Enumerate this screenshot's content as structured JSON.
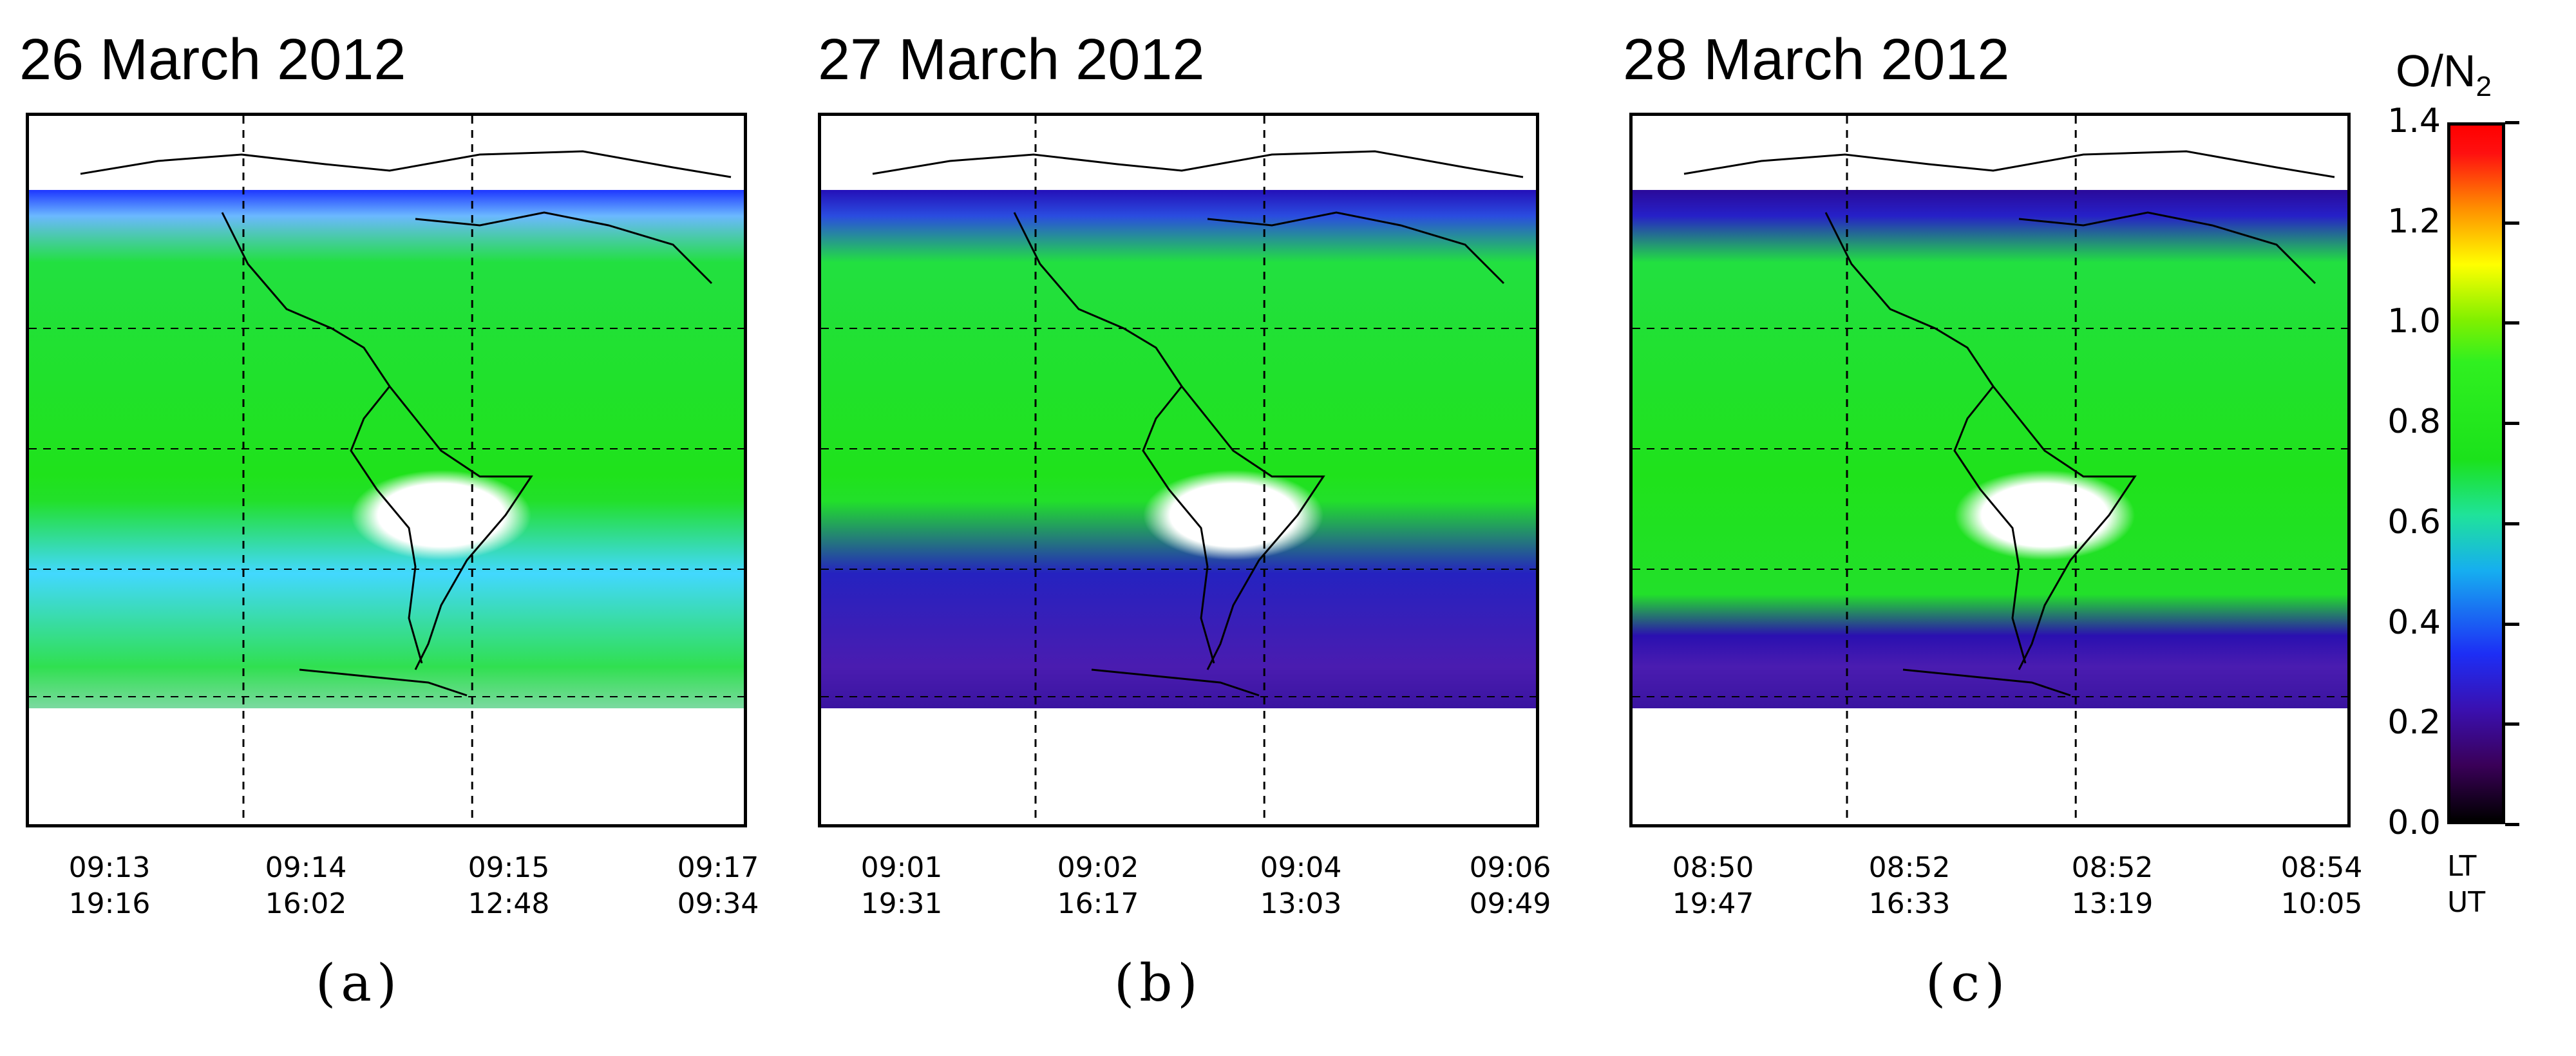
{
  "chart_data": [
    {
      "type": "heatmap",
      "title": "26 March 2012",
      "panel_label": "(a)",
      "variable": "O/N2",
      "x_ticks": [
        {
          "lt": "09:13",
          "ut": "19:16"
        },
        {
          "lt": "09:14",
          "ut": "16:02"
        },
        {
          "lt": "09:15",
          "ut": "12:48"
        },
        {
          "lt": "09:17",
          "ut": "09:34"
        }
      ]
    },
    {
      "type": "heatmap",
      "title": "27 March 2012",
      "panel_label": "(b)",
      "variable": "O/N2",
      "x_ticks": [
        {
          "lt": "09:01",
          "ut": "19:31"
        },
        {
          "lt": "09:02",
          "ut": "16:17"
        },
        {
          "lt": "09:04",
          "ut": "13:03"
        },
        {
          "lt": "09:06",
          "ut": "09:49"
        }
      ]
    },
    {
      "type": "heatmap",
      "title": "28 March 2012",
      "panel_label": "(c)",
      "variable": "O/N2",
      "x_ticks": [
        {
          "lt": "08:50",
          "ut": "19:47"
        },
        {
          "lt": "08:52",
          "ut": "16:33"
        },
        {
          "lt": "08:52",
          "ut": "13:19"
        },
        {
          "lt": "08:54",
          "ut": "10:05"
        }
      ]
    }
  ],
  "colorbar": {
    "title": "O/N",
    "title_sub": "2",
    "ticks": [
      "0.0",
      "0.2",
      "0.4",
      "0.6",
      "0.8",
      "1.0",
      "1.2",
      "1.4"
    ],
    "range": [
      0.0,
      1.4
    ],
    "colors": [
      "#000000",
      "#3a0058",
      "#1d2ef5",
      "#16aef0",
      "#1be21b",
      "#ffff00",
      "#ff9000",
      "#ff0000"
    ]
  },
  "row_labels": {
    "lt": "LT",
    "ut": "UT"
  }
}
